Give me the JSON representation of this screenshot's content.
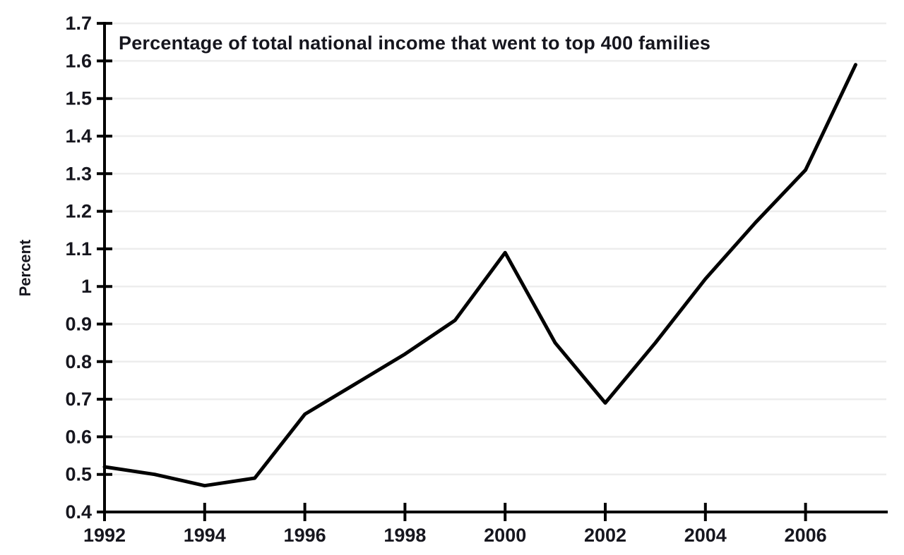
{
  "chart_data": {
    "type": "line",
    "title": "Percentage of total national income that went to top 400 families",
    "ylabel": "Percent",
    "xlabel": "",
    "x": [
      1992,
      1993,
      1994,
      1995,
      1996,
      1997,
      1998,
      1999,
      2000,
      2001,
      2002,
      2003,
      2004,
      2005,
      2006,
      2007
    ],
    "values": [
      0.52,
      0.5,
      0.47,
      0.49,
      0.66,
      0.74,
      0.82,
      0.91,
      1.09,
      0.85,
      0.69,
      0.85,
      1.02,
      1.17,
      1.31,
      1.59
    ],
    "xticks": [
      1992,
      1994,
      1996,
      1998,
      2000,
      2002,
      2004,
      2006
    ],
    "xtick_labels": [
      "1992",
      "1994",
      "1996",
      "1998",
      "2000",
      "2002",
      "2004",
      "2006"
    ],
    "yticks": [
      0.4,
      0.5,
      0.6,
      0.7,
      0.8,
      0.9,
      1.0,
      1.1,
      1.2,
      1.3,
      1.4,
      1.5,
      1.6,
      1.7
    ],
    "ytick_labels": [
      "0.4",
      "0.5",
      "0.6",
      "0.7",
      "0.8",
      "0.9",
      "1",
      "1.1",
      "1.2",
      "1.3",
      "1.4",
      "1.5",
      "1.6",
      "1.7"
    ],
    "xlim": [
      1992,
      2007.7
    ],
    "ylim": [
      0.4,
      1.7
    ],
    "grid": "horizontal",
    "legend": "none",
    "colors": {
      "line": "#000000",
      "axis": "#000000",
      "grid": "#ededed",
      "text": "#16161e",
      "background": "#ffffff"
    }
  }
}
